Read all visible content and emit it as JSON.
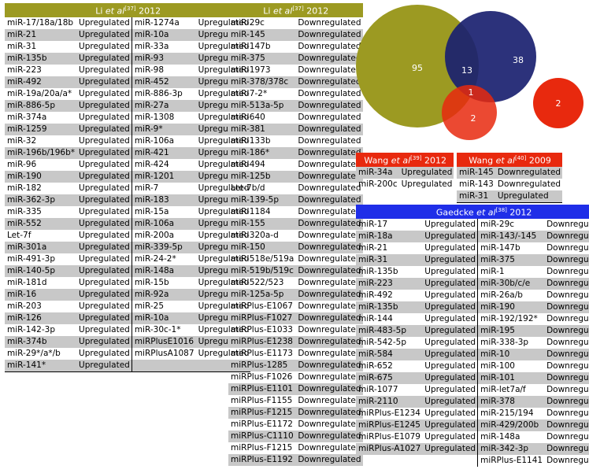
{
  "li_table_1": {
    "header": {
      "prefix": "Li ",
      "etal": "et al",
      "ref": "[37]",
      "year": " 2012"
    },
    "rows": [
      [
        "miR-17/18a/18b",
        "Upregulated",
        "miR-1274a",
        "Upregulated"
      ],
      [
        "miR-21",
        "Upregulated",
        "miR-10a",
        "Upregulated"
      ],
      [
        "miR-31",
        "Upregulated",
        "miR-33a",
        "Upregulated"
      ],
      [
        "miR-135b",
        "Upregulated",
        "miR-93",
        "Upregulated"
      ],
      [
        "miR-223",
        "Upregulated",
        "miR-98",
        "Upregulated"
      ],
      [
        "miR-492",
        "Upregulated",
        "miR-452",
        "Upregulated"
      ],
      [
        "miR-19a/20a/a*",
        "Upregulated",
        "miR-886-3p",
        "Upregulated"
      ],
      [
        "miR-886-5p",
        "Upregulated",
        "miR-27a",
        "Upregulated"
      ],
      [
        "miR-374a",
        "Upregulated",
        "miR-1308",
        "Upregulated"
      ],
      [
        "miR-1259",
        "Upregulated",
        "miR-9*",
        "Upregulated"
      ],
      [
        "miR-32",
        "Upregulated",
        "miR-106a",
        "Upregulated"
      ],
      [
        "miR-196b/196b*",
        "Upregulated",
        "miR-421",
        "Upregulated"
      ],
      [
        "miR-96",
        "Upregulated",
        "miR-424",
        "Upregulated"
      ],
      [
        "miR-190",
        "Upregulated",
        "miR-1201",
        "Upregulated"
      ],
      [
        "miR-182",
        "Upregulated",
        "miR-7",
        "Upregulated"
      ],
      [
        "miR-362-3p",
        "Upregulated",
        "miR-183",
        "Upregulated"
      ],
      [
        "miR-335",
        "Upregulated",
        "miR-15a",
        "Upregulated"
      ],
      [
        "miR-552",
        "Upregulated",
        "miR-106a",
        "Upregulated"
      ],
      [
        "Let-7f",
        "Upregulated",
        "miR-200a",
        "Upregulated"
      ],
      [
        "miR-301a",
        "Upregulated",
        "miR-339-5p",
        "Upregulated"
      ],
      [
        "miR-491-3p",
        "Upregulated",
        "miR-24-2*",
        "Upregulated"
      ],
      [
        "miR-140-5p",
        "Upregulated",
        "miR-148a",
        "Upregulated"
      ],
      [
        "miR-181d",
        "Upregulated",
        "miR-15b",
        "Upregulated"
      ],
      [
        "miR-16",
        "Upregulated",
        "miR-92a",
        "Upregulated"
      ],
      [
        "miR-203",
        "Upregulated",
        "miR-25",
        "Upregulated"
      ],
      [
        "miR-126",
        "Upregulated",
        "miR-10a",
        "Upregulated"
      ],
      [
        "miR-142-3p",
        "Upregulated",
        "miR-30c-1*",
        "Upregulated"
      ],
      [
        "miR-374b",
        "Upregulated",
        "miRPlusE1016",
        "Upregulated"
      ],
      [
        "miR-29*/a*/b",
        "Upregulated",
        "miRPlusA1087",
        "Upregulated"
      ],
      [
        "miR-141*",
        "Upregulated",
        "",
        ""
      ]
    ]
  },
  "li_table_2": {
    "header": {
      "prefix": "Li ",
      "etal": "et al",
      "ref": "[37]",
      "year": " 2012"
    },
    "rows": [
      [
        "miR-29c",
        "Downregulated"
      ],
      [
        "miR-145",
        "Downregulated"
      ],
      [
        "miR-147b",
        "Downregulated"
      ],
      [
        "miR-375",
        "Downregulated"
      ],
      [
        "miR-1973",
        "Downregulated"
      ],
      [
        "miR-378/378c",
        "Downregulated"
      ],
      [
        "miR-7-2*",
        "Downregulated"
      ],
      [
        "miR-513a-5p",
        "Downregulated"
      ],
      [
        "miR-640",
        "Downregulated"
      ],
      [
        "miR-381",
        "Downregulated"
      ],
      [
        "miR-133b",
        "Downregulated"
      ],
      [
        "miR-186*",
        "Downregulated"
      ],
      [
        "miR-494",
        "Downregulated"
      ],
      [
        "miR-125b",
        "Downregulated"
      ],
      [
        "Let-7b/d",
        "Downregulated"
      ],
      [
        "miR-139-5p",
        "Downregulated"
      ],
      [
        "miR-1184",
        "Downregulated"
      ],
      [
        "miR-155",
        "Downregulated"
      ],
      [
        "miR-320a-d",
        "Downregulated"
      ],
      [
        "miR-150",
        "Downregulated"
      ],
      [
        "miR-518e/519a",
        "Downregulated"
      ],
      [
        "miR-519b/519c",
        "Downregulated"
      ],
      [
        "miR-522/523",
        "Downregulated"
      ],
      [
        "miR-125a-5p",
        "Downregulated"
      ],
      [
        "miRPlus-E1067",
        "Downregulated"
      ],
      [
        "miRPlus-F1027",
        "Downregulated"
      ],
      [
        "miRPlus-E1033",
        "Downregulated"
      ],
      [
        "miRPlus-E1238",
        "Downregulated"
      ],
      [
        "miRPlus-E1173",
        "Downregulated"
      ],
      [
        "miRPlus-1285",
        "Downregulated"
      ],
      [
        "miRPlus-F1026",
        "Downregulated"
      ],
      [
        "miRPlus-E1101",
        "Downregulated"
      ],
      [
        "miRPlus-F1155",
        "Downregulated"
      ],
      [
        "miRPlus-F1215",
        "Downregulated"
      ],
      [
        "miRPlus-E1172",
        "Downregulated"
      ],
      [
        "miRPlus-C1110",
        "Downregulated"
      ],
      [
        "miRPlus-F1215",
        "Downregulated"
      ],
      [
        "miRPlus-E1192",
        "Downregulated"
      ]
    ]
  },
  "wang_2012": {
    "header": {
      "prefix": "Wang ",
      "etal": "et al",
      "ref": "[39]",
      "year": " 2012"
    },
    "rows": [
      [
        "miR-34a",
        "Upregulated"
      ],
      [
        "miR-200c",
        "Upregulated"
      ]
    ]
  },
  "wang_2009": {
    "header": {
      "prefix": "Wang ",
      "etal": "et al",
      "ref": "[40]",
      "year": " 2009"
    },
    "rows": [
      [
        "miR-145",
        "Downregulated"
      ],
      [
        "miR-143",
        "Downregulated"
      ],
      [
        "miR-31",
        "Upregulated"
      ]
    ]
  },
  "gaedcke": {
    "header": {
      "prefix": "Gaedcke ",
      "etal": "et al",
      "ref": "[38]",
      "year": " 2012"
    },
    "rows": [
      [
        "miR-17",
        "Upregulated",
        "miR-29c",
        "Downregulated"
      ],
      [
        "miR-18a",
        "Upregulated",
        "miR-143/-145",
        "Downregulated"
      ],
      [
        "miR-21",
        "Upregulated",
        "miR-147b",
        "Downregulated"
      ],
      [
        "miR-31",
        "Upregulated",
        "miR-375",
        "Downregulated"
      ],
      [
        "miR-135b",
        "Upregulated",
        "miR-1",
        "Downregulated"
      ],
      [
        "miR-223",
        "Upregulated",
        "miR-30b/c/e",
        "Downregulated"
      ],
      [
        "miR-492",
        "Upregulated",
        "miR-26a/b",
        "Downregulated"
      ],
      [
        "miR-135b",
        "Upregulated",
        "miR-190",
        "Downregulated"
      ],
      [
        "miR-144",
        "Upregulated",
        "miR-192/192*",
        "Downregulated"
      ],
      [
        "miR-483-5p",
        "Upregulated",
        "miR-195",
        "Downregulated"
      ],
      [
        "miR-542-5p",
        "Upregulated",
        "miR-338-3p",
        "Downregulated"
      ],
      [
        "miR-584",
        "Upregulated",
        "miR-10",
        "Downregulated"
      ],
      [
        "miR-652",
        "Upregulated",
        "miR-100",
        "Downregulated"
      ],
      [
        "miR-675",
        "Upregulated",
        "miR-101",
        "Downregulated"
      ],
      [
        "miR-1077",
        "Upregulated",
        "miR-let7a/f",
        "Downregulated"
      ],
      [
        "miR-2110",
        "Upregulated",
        "miR-378",
        "Downregulated"
      ],
      [
        "miRPlus-E1234",
        "Upregulated",
        "miR-215/194",
        "Downregulated"
      ],
      [
        "miRPlus-E1245",
        "Upregulated",
        "miR-429/200b",
        "Downregulated"
      ],
      [
        "miRPlus-E1079",
        "Upregulated",
        "miR-148a",
        "Downregulated"
      ],
      [
        "miRPlus-A1027",
        "Upregulated",
        "miR-342-3p",
        "Downregulated"
      ],
      [
        "",
        "",
        "miRPlus-E1141",
        "Downregulated"
      ]
    ]
  },
  "venn": {
    "colors": {
      "li": "#9c9a22",
      "gaedcke": "#1a2170",
      "wang2012": "#e8290e",
      "wang2009": "#e8290e"
    },
    "labels": {
      "li_only": "95",
      "li_gaedcke": "13",
      "gaedcke_only": "38",
      "center": "1",
      "li_wang": "2",
      "wang2009_only": "2"
    }
  }
}
